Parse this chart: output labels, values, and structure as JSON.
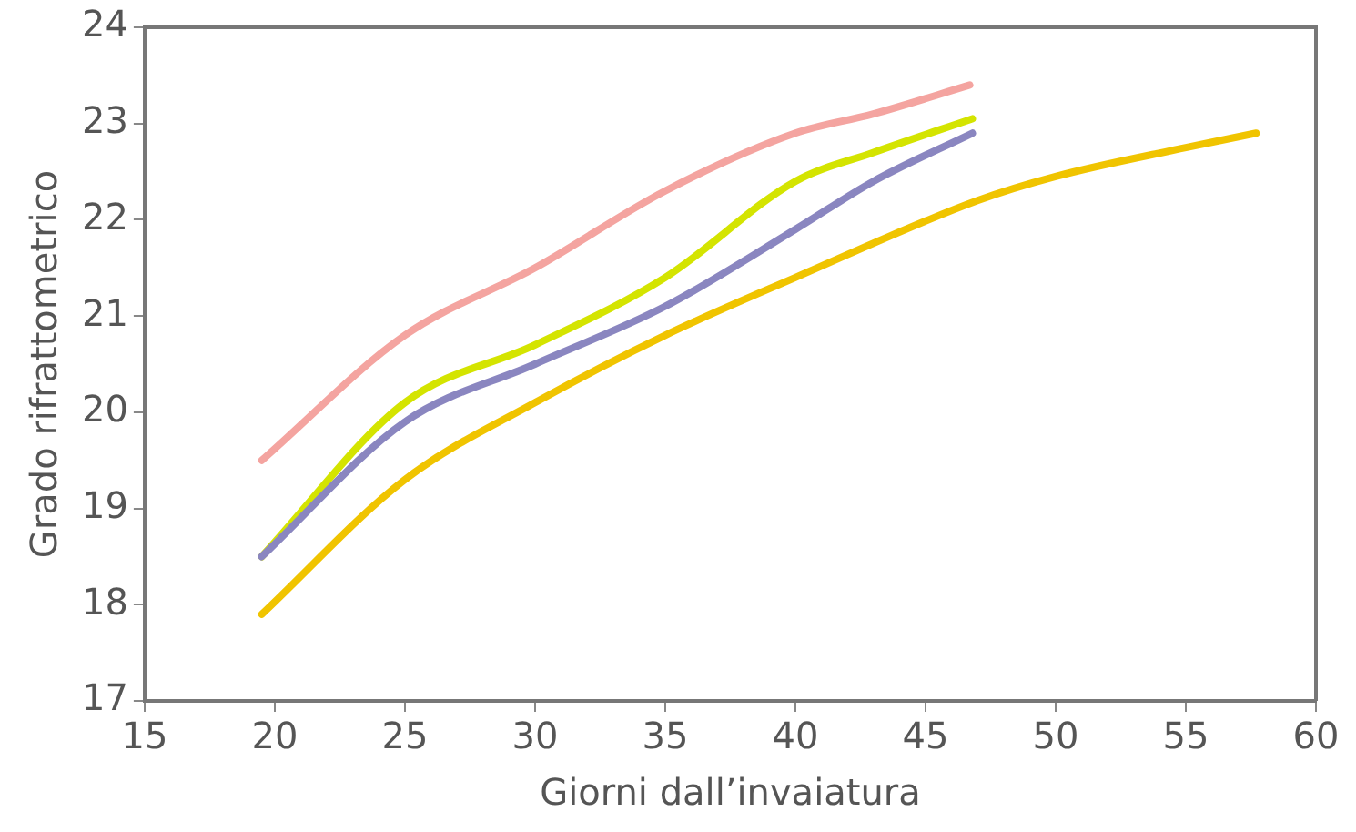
{
  "chart_data": {
    "type": "line",
    "xlabel": "Giorni dall’invaiatura",
    "ylabel": "Grado rifrattometrico",
    "xlim": [
      15,
      60
    ],
    "xticks": [
      15,
      20,
      25,
      30,
      35,
      40,
      45,
      50,
      55,
      60
    ],
    "ylim": [
      17,
      24
    ],
    "yticks": [
      17,
      18,
      19,
      20,
      21,
      22,
      23,
      24
    ],
    "grid": false,
    "legend": false,
    "marker": "none",
    "line_style": "solid",
    "series": [
      {
        "color": "#f4a4a0",
        "x": [
          19.5,
          25,
          30,
          35,
          40,
          43,
          46.7
        ],
        "values": [
          19.5,
          20.8,
          21.5,
          22.3,
          22.9,
          23.1,
          23.4
        ]
      },
      {
        "color": "#f0c400",
        "x": [
          19.5,
          25,
          30,
          35,
          40,
          47,
          50,
          55,
          57.7
        ],
        "values": [
          17.9,
          19.3,
          20.1,
          20.8,
          21.4,
          22.2,
          22.45,
          22.75,
          22.9
        ]
      },
      {
        "color": "#8a86c0",
        "x": [
          19.5,
          25,
          30,
          35,
          40,
          43,
          46.8
        ],
        "values": [
          18.5,
          19.9,
          20.5,
          21.1,
          21.9,
          22.4,
          22.9
        ]
      },
      {
        "color": "#d4e400",
        "x": [
          19.5,
          25,
          30,
          35,
          40,
          43,
          46.8
        ],
        "values": [
          18.5,
          20.1,
          20.7,
          21.4,
          22.4,
          22.7,
          23.05
        ]
      }
    ]
  }
}
